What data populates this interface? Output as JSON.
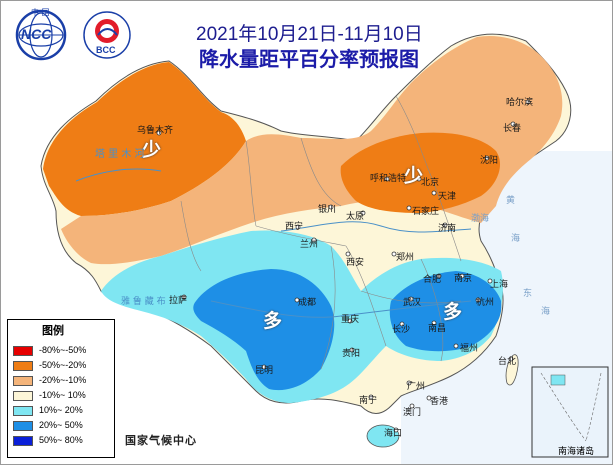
{
  "title": "2021年10月21日-11月10日",
  "subtitle": "降水量距平百分率预报图",
  "agency": "国家气候中心",
  "logos": {
    "ncc_text": "NCC",
    "ncc_cn": "中  国",
    "bcc_text": "BCC"
  },
  "legend": {
    "title": "图例",
    "items": [
      {
        "label": "-80%~-50%",
        "color": "#e60000"
      },
      {
        "label": "-50%~-20%",
        "color": "#ef7d15"
      },
      {
        "label": "-20%~-10%",
        "color": "#f4b47a"
      },
      {
        "label": "-10%~ 10%",
        "color": "#fdf6d8"
      },
      {
        "label": "10%~ 20%",
        "color": "#7fe6f2"
      },
      {
        "label": "20%~ 50%",
        "color": "#1e8fe6"
      },
      {
        "label": "50%~ 80%",
        "color": "#0a1fd8"
      }
    ]
  },
  "region_labels": {
    "less_nw": "少",
    "less_n": "少",
    "more_sw": "多",
    "more_e": "多"
  },
  "cities": {
    "urumqi": "乌鲁木齐",
    "harbin": "哈尔滨",
    "changchun": "长春",
    "shenyang": "沈阳",
    "hohhot": "呼和浩特",
    "beijing": "北京",
    "tianjin": "天津",
    "shijiazhuang": "石家庄",
    "yinchuan": "银川",
    "taiyuan": "太原",
    "jinan": "济南",
    "xining": "西宁",
    "lanzhou": "兰州",
    "xian": "西安",
    "zhengzhou": "郑州",
    "hefei": "合肥",
    "nanjing": "南京",
    "shanghai": "上海",
    "lhasa": "拉萨",
    "chengdu": "成都",
    "wuhan": "武汉",
    "hangzhou": "杭州",
    "chongqing": "重庆",
    "changsha": "长沙",
    "nanchang": "南昌",
    "guiyang": "贵阳",
    "fuzhou": "福州",
    "taibei": "台北",
    "kunming": "昆明",
    "guangzhou": "广州",
    "nanning": "南宁",
    "hongkong": "香港",
    "macau": "澳门",
    "haikou": "海口",
    "xinjiang_river": "塔  里  木  河",
    "yarlung": "雅  鲁  藏  布"
  },
  "seas": {
    "bohai": "渤海",
    "huanghai": "黄",
    "huanghai2": "海",
    "donghai": "东",
    "donghai2": "海"
  },
  "inset": "南海诸岛"
}
